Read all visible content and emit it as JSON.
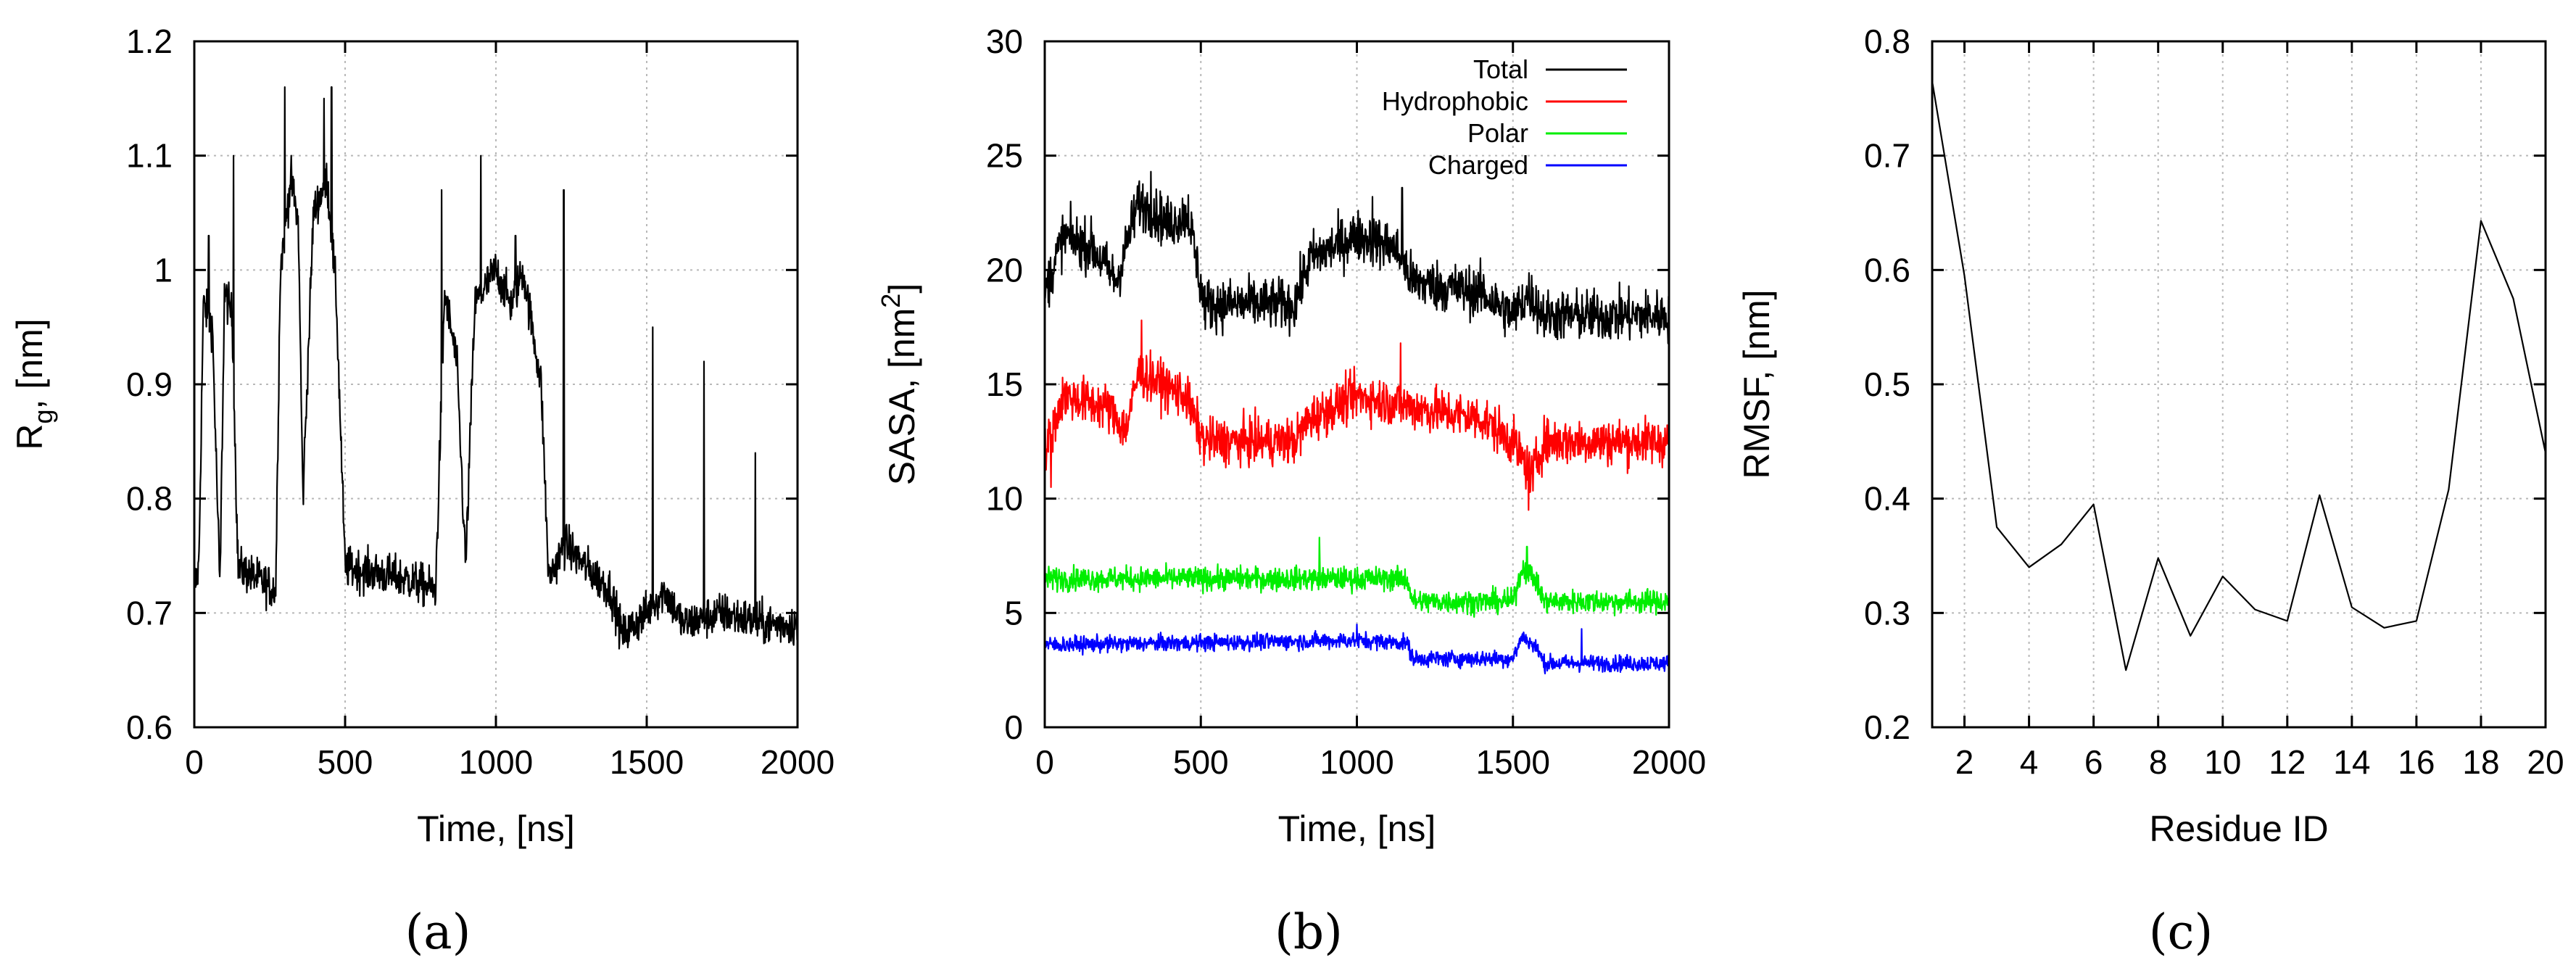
{
  "chart_data": [
    {
      "type": "line",
      "panel": "a",
      "caption": "(a)",
      "title": "",
      "xlabel": "Time, [ns]",
      "ylabel_main": "R",
      "ylabel_sub": "g",
      "ylabel_tail": ", [nm]",
      "xlim": [
        0,
        2000
      ],
      "ylim": [
        0.6,
        1.2
      ],
      "xticks": [
        0,
        500,
        1000,
        1500,
        2000
      ],
      "xtick_labels": [
        "0",
        "500",
        "1000",
        "1500",
        "2000"
      ],
      "yticks": [
        0.6,
        0.7,
        0.8,
        0.9,
        1.0,
        1.1,
        1.2
      ],
      "ytick_labels": [
        "0.6",
        "0.7",
        "0.8",
        "0.9",
        "1",
        "1.1",
        "1.2"
      ],
      "grid": true,
      "series": [
        {
          "name": "Rg",
          "color": "#000000",
          "noise": 0.018,
          "segments": [
            {
              "x": 0,
              "y": 0.72
            },
            {
              "x": 15,
              "y": 0.74
            },
            {
              "x": 30,
              "y": 0.97
            },
            {
              "x": 60,
              "y": 0.95
            },
            {
              "x": 85,
              "y": 0.72
            },
            {
              "x": 100,
              "y": 0.98
            },
            {
              "x": 125,
              "y": 0.96
            },
            {
              "x": 145,
              "y": 0.74
            },
            {
              "x": 270,
              "y": 0.72
            },
            {
              "x": 285,
              "y": 1.0
            },
            {
              "x": 320,
              "y": 1.08
            },
            {
              "x": 345,
              "y": 1.04
            },
            {
              "x": 360,
              "y": 0.8
            },
            {
              "x": 395,
              "y": 1.05
            },
            {
              "x": 440,
              "y": 1.08
            },
            {
              "x": 470,
              "y": 0.98
            },
            {
              "x": 500,
              "y": 0.74
            },
            {
              "x": 700,
              "y": 0.73
            },
            {
              "x": 800,
              "y": 0.72
            },
            {
              "x": 830,
              "y": 0.98
            },
            {
              "x": 870,
              "y": 0.92
            },
            {
              "x": 900,
              "y": 0.74
            },
            {
              "x": 930,
              "y": 0.97
            },
            {
              "x": 1000,
              "y": 1.0
            },
            {
              "x": 1050,
              "y": 0.97
            },
            {
              "x": 1090,
              "y": 1.0
            },
            {
              "x": 1150,
              "y": 0.9
            },
            {
              "x": 1175,
              "y": 0.73
            },
            {
              "x": 1230,
              "y": 0.76
            },
            {
              "x": 1300,
              "y": 0.74
            },
            {
              "x": 1380,
              "y": 0.72
            },
            {
              "x": 1420,
              "y": 0.68
            },
            {
              "x": 1500,
              "y": 0.7
            },
            {
              "x": 1560,
              "y": 0.72
            },
            {
              "x": 1620,
              "y": 0.69
            },
            {
              "x": 1750,
              "y": 0.7
            },
            {
              "x": 1900,
              "y": 0.69
            },
            {
              "x": 2000,
              "y": 0.69
            }
          ],
          "spikes": [
            {
              "x": 48,
              "y": 1.03
            },
            {
              "x": 130,
              "y": 1.1
            },
            {
              "x": 300,
              "y": 1.16
            },
            {
              "x": 430,
              "y": 1.15
            },
            {
              "x": 455,
              "y": 1.16
            },
            {
              "x": 820,
              "y": 1.07
            },
            {
              "x": 950,
              "y": 1.1
            },
            {
              "x": 1065,
              "y": 1.03
            },
            {
              "x": 1225,
              "y": 1.07
            },
            {
              "x": 1520,
              "y": 0.95
            },
            {
              "x": 1690,
              "y": 0.92
            },
            {
              "x": 1860,
              "y": 0.84
            }
          ]
        }
      ]
    },
    {
      "type": "line",
      "panel": "b",
      "caption": "(b)",
      "title": "",
      "xlabel": "Time, [ns]",
      "ylabel_main": "SASA, [nm",
      "ylabel_sup": "2",
      "ylabel_tail": "]",
      "xlim": [
        0,
        2000
      ],
      "ylim": [
        0,
        30
      ],
      "xticks": [
        0,
        500,
        1000,
        1500,
        2000
      ],
      "xtick_labels": [
        "0",
        "500",
        "1000",
        "1500",
        "2000"
      ],
      "yticks": [
        0,
        5,
        10,
        15,
        20,
        25,
        30
      ],
      "ytick_labels": [
        "0",
        "5",
        "10",
        "15",
        "20",
        "25",
        "30"
      ],
      "grid": true,
      "legend_position": "top-right",
      "series": [
        {
          "name": "Total",
          "color": "#000000",
          "noise": 1.1,
          "segments": [
            {
              "x": 0,
              "y": 19.0
            },
            {
              "x": 60,
              "y": 21.5
            },
            {
              "x": 150,
              "y": 21.0
            },
            {
              "x": 230,
              "y": 19.5
            },
            {
              "x": 300,
              "y": 23.0
            },
            {
              "x": 400,
              "y": 22.0
            },
            {
              "x": 460,
              "y": 22.5
            },
            {
              "x": 510,
              "y": 18.5
            },
            {
              "x": 800,
              "y": 18.5
            },
            {
              "x": 850,
              "y": 20.5
            },
            {
              "x": 1000,
              "y": 21.5
            },
            {
              "x": 1120,
              "y": 21.0
            },
            {
              "x": 1180,
              "y": 19.5
            },
            {
              "x": 1400,
              "y": 19.0
            },
            {
              "x": 1500,
              "y": 18.0
            },
            {
              "x": 1550,
              "y": 19.0
            },
            {
              "x": 1600,
              "y": 18.0
            },
            {
              "x": 2000,
              "y": 18.0
            }
          ],
          "spikes": [
            {
              "x": 340,
              "y": 24.3
            },
            {
              "x": 1050,
              "y": 23.2
            },
            {
              "x": 1145,
              "y": 23.6
            }
          ]
        },
        {
          "name": "Hydrophobic",
          "color": "#ff0000",
          "noise": 1.0,
          "segments": [
            {
              "x": 0,
              "y": 12.0
            },
            {
              "x": 60,
              "y": 14.5
            },
            {
              "x": 200,
              "y": 14.0
            },
            {
              "x": 260,
              "y": 13.0
            },
            {
              "x": 300,
              "y": 15.5
            },
            {
              "x": 450,
              "y": 14.5
            },
            {
              "x": 510,
              "y": 12.5
            },
            {
              "x": 800,
              "y": 12.5
            },
            {
              "x": 850,
              "y": 13.5
            },
            {
              "x": 1000,
              "y": 14.5
            },
            {
              "x": 1180,
              "y": 14.0
            },
            {
              "x": 1400,
              "y": 13.5
            },
            {
              "x": 1500,
              "y": 12.5
            },
            {
              "x": 1560,
              "y": 11.0
            },
            {
              "x": 1600,
              "y": 12.5
            },
            {
              "x": 2000,
              "y": 12.5
            }
          ],
          "spikes": [
            {
              "x": 310,
              "y": 17.8
            },
            {
              "x": 1140,
              "y": 16.8
            },
            {
              "x": 1550,
              "y": 9.5
            },
            {
              "x": 20,
              "y": 10.5
            }
          ]
        },
        {
          "name": "Polar",
          "color": "#00ee00",
          "noise": 0.5,
          "segments": [
            {
              "x": 0,
              "y": 6.5
            },
            {
              "x": 500,
              "y": 6.5
            },
            {
              "x": 1000,
              "y": 6.5
            },
            {
              "x": 1160,
              "y": 6.5
            },
            {
              "x": 1180,
              "y": 5.5
            },
            {
              "x": 1500,
              "y": 5.5
            },
            {
              "x": 1530,
              "y": 7.0
            },
            {
              "x": 1570,
              "y": 6.5
            },
            {
              "x": 1600,
              "y": 5.5
            },
            {
              "x": 2000,
              "y": 5.5
            }
          ],
          "spikes": [
            {
              "x": 880,
              "y": 8.3
            },
            {
              "x": 1545,
              "y": 7.9
            }
          ]
        },
        {
          "name": "Charged",
          "color": "#0000ff",
          "noise": 0.35,
          "segments": [
            {
              "x": 0,
              "y": 3.6
            },
            {
              "x": 500,
              "y": 3.7
            },
            {
              "x": 1000,
              "y": 3.8
            },
            {
              "x": 1160,
              "y": 3.7
            },
            {
              "x": 1180,
              "y": 3.0
            },
            {
              "x": 1500,
              "y": 3.0
            },
            {
              "x": 1530,
              "y": 4.0
            },
            {
              "x": 1580,
              "y": 3.4
            },
            {
              "x": 1600,
              "y": 2.8
            },
            {
              "x": 2000,
              "y": 2.8
            }
          ],
          "spikes": [
            {
              "x": 1720,
              "y": 4.3
            },
            {
              "x": 1000,
              "y": 4.5
            }
          ]
        }
      ]
    },
    {
      "type": "line",
      "panel": "c",
      "caption": "(c)",
      "title": "",
      "xlabel": "Residue ID",
      "ylabel_main": "RMSF, [nm]",
      "xlim": [
        1,
        20
      ],
      "ylim": [
        0.2,
        0.8
      ],
      "xticks": [
        2,
        4,
        6,
        8,
        10,
        12,
        14,
        16,
        18,
        20
      ],
      "xtick_labels": [
        "2",
        "4",
        "6",
        "8",
        "10",
        "12",
        "14",
        "16",
        "18",
        "20"
      ],
      "yticks": [
        0.2,
        0.3,
        0.4,
        0.5,
        0.6,
        0.7,
        0.8
      ],
      "ytick_labels": [
        "0.2",
        "0.3",
        "0.4",
        "0.5",
        "0.6",
        "0.7",
        "0.8"
      ],
      "grid": true,
      "series": [
        {
          "name": "RMSF",
          "color": "#000000",
          "x": [
            1,
            2,
            3,
            4,
            5,
            6,
            7,
            8,
            9,
            10,
            11,
            12,
            13,
            14,
            15,
            16,
            17,
            18,
            19,
            20
          ],
          "y": [
            0.765,
            0.595,
            0.375,
            0.34,
            0.36,
            0.395,
            0.25,
            0.348,
            0.28,
            0.332,
            0.303,
            0.293,
            0.403,
            0.305,
            0.287,
            0.293,
            0.408,
            0.643,
            0.575,
            0.44
          ]
        }
      ]
    }
  ]
}
